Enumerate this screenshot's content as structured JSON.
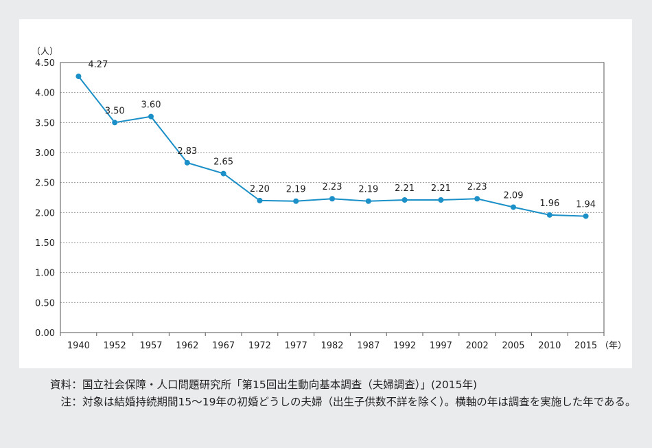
{
  "chart_data": {
    "type": "line",
    "y_unit": "（人）",
    "x_unit": "（年）",
    "ylim": [
      0,
      4.5
    ],
    "y_ticks": [
      "0.00",
      "0.50",
      "1.00",
      "1.50",
      "2.00",
      "2.50",
      "3.00",
      "3.50",
      "4.00",
      "4.50"
    ],
    "grid": true,
    "categories": [
      "1940",
      "1952",
      "1957",
      "1962",
      "1967",
      "1972",
      "1977",
      "1982",
      "1987",
      "1992",
      "1997",
      "2002",
      "2005",
      "2010",
      "2015"
    ],
    "series": [
      {
        "values": [
          4.27,
          3.5,
          3.6,
          2.83,
          2.65,
          2.2,
          2.19,
          2.23,
          2.19,
          2.21,
          2.21,
          2.23,
          2.09,
          1.96,
          1.94
        ],
        "labels": [
          "4.27",
          "3.50",
          "3.60",
          "2.83",
          "2.65",
          "2.20",
          "2.19",
          "2.23",
          "2.19",
          "2.21",
          "2.21",
          "2.23",
          "2.09",
          "1.96",
          "1.94"
        ]
      }
    ],
    "colors": {
      "line": "#1a8fc8",
      "grid": "#9a9a9a",
      "axis": "#555555"
    }
  },
  "notes": {
    "source_label": "資料",
    "source_text": "国立社会保障・人口問題研究所「第15回出生動向基本調査（夫婦調査）」(2015年)",
    "note_label": "注",
    "note_text": "対象は結婚持続期間15〜19年の初婚どうしの夫婦（出生子供数不詳を除く）。横軸の年は調査を実施した年である。"
  }
}
